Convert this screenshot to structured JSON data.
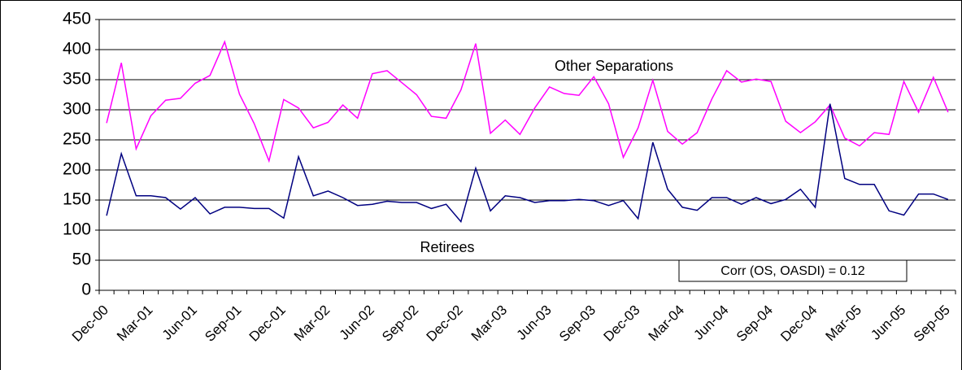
{
  "chart_data": {
    "type": "line",
    "categories": [
      "Dec-00",
      null,
      null,
      "Mar-01",
      null,
      null,
      "Jun-01",
      null,
      null,
      "Sep-01",
      null,
      null,
      "Dec-01",
      null,
      null,
      "Mar-02",
      null,
      null,
      "Jun-02",
      null,
      null,
      "Sep-02",
      null,
      null,
      "Dec-02",
      null,
      null,
      "Mar-03",
      null,
      null,
      "Jun-03",
      null,
      null,
      "Sep-03",
      null,
      null,
      "Dec-03",
      null,
      null,
      "Mar-04",
      null,
      null,
      "Jun-04",
      null,
      null,
      "Sep-04",
      null,
      null,
      "Dec-04",
      null,
      null,
      "Mar-05",
      null,
      null,
      "Jun-05",
      null,
      null,
      "Sep-05"
    ],
    "series": [
      {
        "name": "Other Separations",
        "color": "#ff00ff",
        "values": [
          278,
          378,
          235,
          290,
          316,
          319,
          344,
          357,
          413,
          326,
          277,
          215,
          317,
          303,
          270,
          279,
          308,
          286,
          360,
          365,
          345,
          325,
          289,
          286,
          333,
          410,
          261,
          283,
          259,
          303,
          338,
          327,
          324,
          355,
          310,
          221,
          270,
          349,
          264,
          243,
          262,
          318,
          365,
          346,
          351,
          347,
          281,
          262,
          280,
          308,
          253,
          240,
          262,
          259,
          347,
          296,
          354,
          296
        ]
      },
      {
        "name": "Retirees",
        "color": "#000080",
        "values": [
          124,
          227,
          157,
          157,
          154,
          135,
          154,
          127,
          138,
          138,
          136,
          136,
          120,
          222,
          157,
          165,
          154,
          141,
          143,
          148,
          146,
          146,
          136,
          143,
          114,
          203,
          132,
          157,
          154,
          146,
          149,
          149,
          151,
          149,
          141,
          149,
          119,
          246,
          168,
          138,
          133,
          154,
          154,
          143,
          154,
          144,
          151,
          168,
          138,
          310,
          186,
          176,
          176,
          132,
          125,
          160,
          160,
          151
        ]
      }
    ],
    "annotations": [
      "Corr (OS, OASDI) = 0.12"
    ],
    "ylim": [
      0,
      450
    ],
    "yticks": [
      0,
      50,
      100,
      150,
      200,
      250,
      300,
      350,
      400,
      450
    ],
    "grid": true
  }
}
